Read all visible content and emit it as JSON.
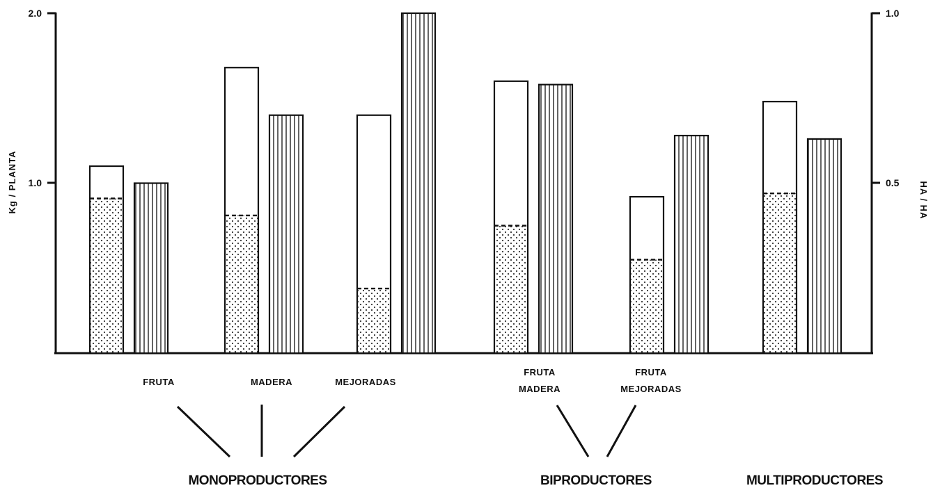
{
  "chart_data": {
    "type": "bar",
    "left_axis": {
      "label": "Kg / PLANTA",
      "ticks": [
        "1.0",
        "2.0"
      ],
      "range": [
        0,
        2.0
      ]
    },
    "right_axis": {
      "label": "HA / HA",
      "ticks": [
        "0.5",
        "1.0"
      ],
      "range": [
        0,
        1.0
      ]
    },
    "groups": [
      {
        "name": "MONOPRODUCTORES",
        "categories": [
          "FRUTA",
          "MADERA",
          "MEJORADAS"
        ],
        "category_lines": [
          [
            "FRUTA"
          ],
          [
            "MADERA"
          ],
          [
            "MEJORADAS"
          ]
        ],
        "kg_planta_total": [
          1.1,
          1.68,
          1.4
        ],
        "kg_planta_lower": [
          0.91,
          0.81,
          0.38
        ],
        "ha_ha": [
          0.5,
          0.7,
          1.0
        ]
      },
      {
        "name": "BIPRODUCTORES",
        "categories": [
          "FRUTA MADERA",
          "FRUTA MEJORADAS"
        ],
        "category_lines": [
          [
            "FRUTA",
            "MADERA"
          ],
          [
            "FRUTA",
            "MEJORADAS"
          ]
        ],
        "kg_planta_total": [
          1.6,
          0.92
        ],
        "kg_planta_lower": [
          0.75,
          0.55
        ],
        "ha_ha": [
          0.79,
          0.64
        ]
      },
      {
        "name": "MULTIPRODUCTORES",
        "categories": [
          ""
        ],
        "category_lines": [
          []
        ],
        "kg_planta_total": [
          1.48
        ],
        "kg_planta_lower": [
          0.94
        ],
        "ha_ha": [
          0.63
        ]
      }
    ]
  }
}
